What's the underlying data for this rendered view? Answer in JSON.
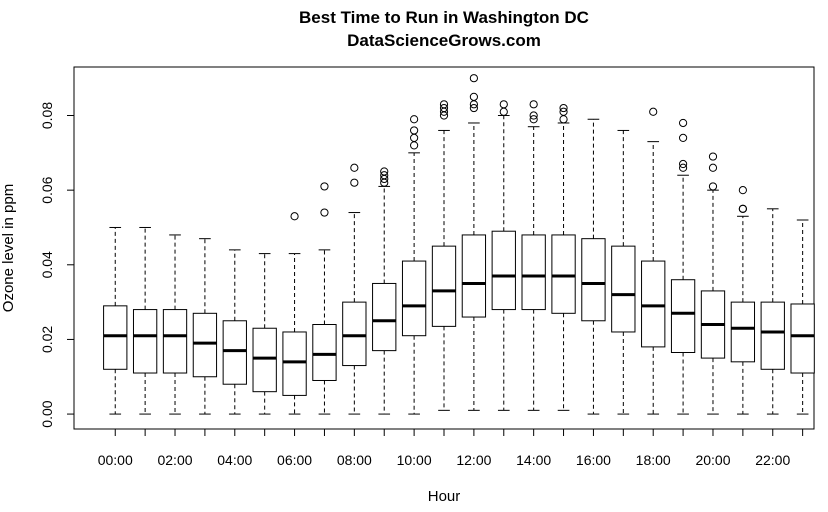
{
  "chart_data": {
    "type": "box",
    "title": "Best Time to Run in Washington DC",
    "subtitle": "DataScienceGrows.com",
    "xlabel": "Hour",
    "ylabel": "Ozone level in ppm",
    "ylim": [
      -0.004,
      0.093
    ],
    "y_ticks": [
      "0.00",
      "0.02",
      "0.04",
      "0.06",
      "0.08"
    ],
    "x_tick_labels": [
      "00:00",
      "02:00",
      "04:00",
      "06:00",
      "08:00",
      "10:00",
      "12:00",
      "14:00",
      "16:00",
      "18:00",
      "20:00",
      "22:00"
    ],
    "x_tick_label_hours": [
      0,
      2,
      4,
      6,
      8,
      10,
      12,
      14,
      16,
      18,
      20,
      22
    ],
    "grid": false,
    "boxes": [
      {
        "hour": 0,
        "min": 0.0,
        "q1": 0.012,
        "median": 0.021,
        "q3": 0.029,
        "max": 0.05,
        "outliers": []
      },
      {
        "hour": 1,
        "min": 0.0,
        "q1": 0.011,
        "median": 0.021,
        "q3": 0.028,
        "max": 0.05,
        "outliers": []
      },
      {
        "hour": 2,
        "min": 0.0,
        "q1": 0.011,
        "median": 0.021,
        "q3": 0.028,
        "max": 0.048,
        "outliers": []
      },
      {
        "hour": 3,
        "min": 0.0,
        "q1": 0.01,
        "median": 0.019,
        "q3": 0.027,
        "max": 0.047,
        "outliers": []
      },
      {
        "hour": 4,
        "min": 0.0,
        "q1": 0.008,
        "median": 0.017,
        "q3": 0.025,
        "max": 0.044,
        "outliers": []
      },
      {
        "hour": 5,
        "min": 0.0,
        "q1": 0.006,
        "median": 0.015,
        "q3": 0.023,
        "max": 0.043,
        "outliers": []
      },
      {
        "hour": 6,
        "min": 0.0,
        "q1": 0.005,
        "median": 0.014,
        "q3": 0.022,
        "max": 0.043,
        "outliers": [
          0.053
        ]
      },
      {
        "hour": 7,
        "min": 0.0,
        "q1": 0.009,
        "median": 0.016,
        "q3": 0.024,
        "max": 0.044,
        "outliers": [
          0.054,
          0.061
        ]
      },
      {
        "hour": 8,
        "min": 0.0,
        "q1": 0.013,
        "median": 0.021,
        "q3": 0.03,
        "max": 0.054,
        "outliers": [
          0.062,
          0.066
        ]
      },
      {
        "hour": 9,
        "min": 0.0,
        "q1": 0.017,
        "median": 0.025,
        "q3": 0.035,
        "max": 0.061,
        "outliers": [
          0.062,
          0.063,
          0.064,
          0.065
        ]
      },
      {
        "hour": 10,
        "min": 0.0,
        "q1": 0.021,
        "median": 0.029,
        "q3": 0.041,
        "max": 0.07,
        "outliers": [
          0.072,
          0.074,
          0.076,
          0.079
        ]
      },
      {
        "hour": 11,
        "min": 0.001,
        "q1": 0.0235,
        "median": 0.033,
        "q3": 0.045,
        "max": 0.076,
        "outliers": [
          0.08,
          0.081,
          0.082,
          0.083
        ]
      },
      {
        "hour": 12,
        "min": 0.001,
        "q1": 0.026,
        "median": 0.035,
        "q3": 0.048,
        "max": 0.078,
        "outliers": [
          0.082,
          0.083,
          0.085,
          0.09
        ]
      },
      {
        "hour": 13,
        "min": 0.001,
        "q1": 0.028,
        "median": 0.037,
        "q3": 0.049,
        "max": 0.08,
        "outliers": [
          0.081,
          0.083
        ]
      },
      {
        "hour": 14,
        "min": 0.001,
        "q1": 0.028,
        "median": 0.037,
        "q3": 0.048,
        "max": 0.077,
        "outliers": [
          0.079,
          0.08,
          0.083
        ]
      },
      {
        "hour": 15,
        "min": 0.001,
        "q1": 0.027,
        "median": 0.037,
        "q3": 0.048,
        "max": 0.078,
        "outliers": [
          0.079,
          0.081,
          0.082
        ]
      },
      {
        "hour": 16,
        "min": 0.0,
        "q1": 0.025,
        "median": 0.035,
        "q3": 0.047,
        "max": 0.079,
        "outliers": []
      },
      {
        "hour": 17,
        "min": 0.0,
        "q1": 0.022,
        "median": 0.032,
        "q3": 0.045,
        "max": 0.076,
        "outliers": []
      },
      {
        "hour": 18,
        "min": 0.0,
        "q1": 0.018,
        "median": 0.029,
        "q3": 0.041,
        "max": 0.073,
        "outliers": [
          0.081
        ]
      },
      {
        "hour": 19,
        "min": 0.0,
        "q1": 0.0165,
        "median": 0.027,
        "q3": 0.036,
        "max": 0.064,
        "outliers": [
          0.066,
          0.067,
          0.074,
          0.078
        ]
      },
      {
        "hour": 20,
        "min": 0.0,
        "q1": 0.015,
        "median": 0.024,
        "q3": 0.033,
        "max": 0.06,
        "outliers": [
          0.061,
          0.066,
          0.069
        ]
      },
      {
        "hour": 21,
        "min": 0.0,
        "q1": 0.014,
        "median": 0.023,
        "q3": 0.03,
        "max": 0.053,
        "outliers": [
          0.055,
          0.055,
          0.06
        ]
      },
      {
        "hour": 22,
        "min": 0.0,
        "q1": 0.012,
        "median": 0.022,
        "q3": 0.03,
        "max": 0.055,
        "outliers": []
      },
      {
        "hour": 23,
        "min": 0.0,
        "q1": 0.011,
        "median": 0.021,
        "q3": 0.0295,
        "max": 0.052,
        "outliers": []
      }
    ]
  }
}
